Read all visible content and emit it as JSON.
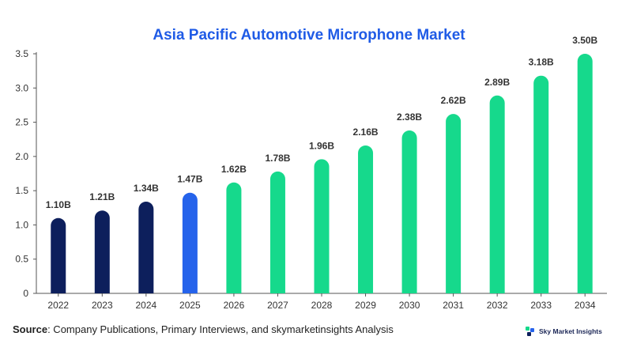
{
  "chart_data": {
    "type": "bar",
    "title": "Asia Pacific Automotive Microphone Market",
    "categories": [
      "2022",
      "2023",
      "2024",
      "2025",
      "2026",
      "2027",
      "2028",
      "2029",
      "2030",
      "2031",
      "2032",
      "2033",
      "2034"
    ],
    "values": [
      1.1,
      1.21,
      1.34,
      1.47,
      1.62,
      1.78,
      1.96,
      2.16,
      2.38,
      2.62,
      2.89,
      3.18,
      3.5
    ],
    "data_labels": [
      "1.10B",
      "1.21B",
      "1.34B",
      "1.47B",
      "1.62B",
      "1.78B",
      "1.96B",
      "2.16B",
      "2.38B",
      "2.62B",
      "2.89B",
      "3.18B",
      "3.50B"
    ],
    "ylim": [
      0,
      3.5
    ],
    "yticks": [
      "0",
      "0.5",
      "1.0",
      "1.5",
      "2.0",
      "2.5",
      "3.0",
      "3.5"
    ],
    "grid": false,
    "bar_colors": [
      "#0d1f5c",
      "#0d1f5c",
      "#0d1f5c",
      "#2563eb",
      "#16d98c",
      "#16d98c",
      "#16d98c",
      "#16d98c",
      "#16d98c",
      "#16d98c",
      "#16d98c",
      "#16d98c",
      "#16d98c"
    ]
  },
  "footer": {
    "source_label": "Source",
    "source_text": ": Company Publications, Primary Interviews, and skymarketinsights Analysis",
    "brand_name": "Sky Market Insights",
    "brand_icon": "sky-market-insights-logo-icon"
  },
  "colors": {
    "title": "#1f5be6",
    "axis": "#555555"
  }
}
